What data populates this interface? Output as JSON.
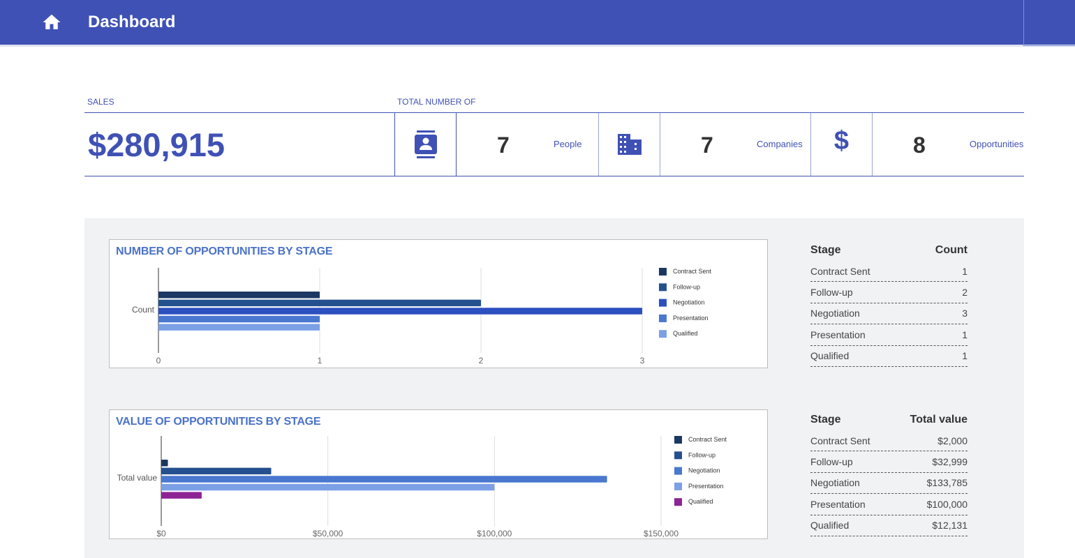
{
  "header": {
    "title": "Dashboard",
    "icon": "home-icon"
  },
  "summary": {
    "sales_label": "SALES",
    "sales_value": "$280,915",
    "total_label": "TOTAL NUMBER OF",
    "stats": [
      {
        "icon": "contact-card-icon",
        "value": "7",
        "label": "People"
      },
      {
        "icon": "building-icon",
        "value": "7",
        "label": "Companies"
      },
      {
        "icon": "dollar-icon",
        "value": "8",
        "label": "Opportunities"
      }
    ]
  },
  "colors": {
    "accent": "#3f51b5",
    "title_blue": "#4a72c8"
  },
  "chart_data": [
    {
      "type": "bar",
      "orientation": "horizontal",
      "title": "NUMBER OF OPPORTUNITIES BY STAGE",
      "category": "Count",
      "series": [
        {
          "name": "Contract Sent",
          "value": 1,
          "color": "#1c3764"
        },
        {
          "name": "Follow-up",
          "value": 2,
          "color": "#24508f"
        },
        {
          "name": "Negotiation",
          "value": 3,
          "color": "#2c50c0"
        },
        {
          "name": "Presentation",
          "value": 1,
          "color": "#4a78d0"
        },
        {
          "name": "Qualified",
          "value": 1,
          "color": "#7ba0e6"
        }
      ],
      "xlim": [
        0,
        3
      ],
      "ticks": [
        "0",
        "1",
        "2",
        "3"
      ],
      "tick_values": [
        0,
        1,
        2,
        3
      ],
      "grid": true,
      "legend": "right"
    },
    {
      "type": "bar",
      "orientation": "horizontal",
      "title": "VALUE OF OPPORTUNITIES BY STAGE",
      "category": "Total value",
      "series": [
        {
          "name": "Contract Sent",
          "value": 2000,
          "color": "#1c3764"
        },
        {
          "name": "Follow-up",
          "value": 32999,
          "color": "#24508f"
        },
        {
          "name": "Negotiation",
          "value": 133785,
          "color": "#4a78d0"
        },
        {
          "name": "Presentation",
          "value": 100000,
          "color": "#7ba0e6"
        },
        {
          "name": "Qualified",
          "value": 12131,
          "color": "#8e2396"
        }
      ],
      "xlim": [
        0,
        150000
      ],
      "ticks": [
        "$0",
        "$50,000",
        "$100,000",
        "$150,000"
      ],
      "tick_values": [
        0,
        50000,
        100000,
        150000
      ],
      "grid": true,
      "legend": "right"
    }
  ],
  "tables": [
    {
      "headers": [
        "Stage",
        "Count"
      ],
      "rows": [
        [
          "Contract Sent",
          "1"
        ],
        [
          "Follow-up",
          "2"
        ],
        [
          "Negotiation",
          "3"
        ],
        [
          "Presentation",
          "1"
        ],
        [
          "Qualified",
          "1"
        ]
      ]
    },
    {
      "headers": [
        "Stage",
        "Total value"
      ],
      "rows": [
        [
          "Contract Sent",
          "$2,000"
        ],
        [
          "Follow-up",
          "$32,999"
        ],
        [
          "Negotiation",
          "$133,785"
        ],
        [
          "Presentation",
          "$100,000"
        ],
        [
          "Qualified",
          "$12,131"
        ]
      ]
    }
  ]
}
